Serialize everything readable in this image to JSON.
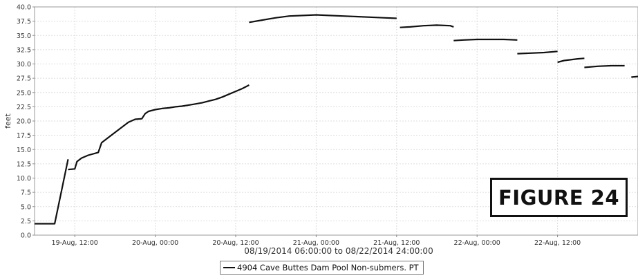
{
  "chart_data": {
    "type": "line",
    "title": "",
    "xlabel": "08/19/2014 06:00:00 to 08/22/2014 24:00:00",
    "ylabel": "feet",
    "x_range": [
      "2014-08-19 06:00",
      "2014-08-22 24:00"
    ],
    "ylim": [
      0,
      40
    ],
    "y_ticks": [
      "0.0",
      "2.5",
      "5.0",
      "7.5",
      "10.0",
      "12.5",
      "15.0",
      "17.5",
      "20.0",
      "22.5",
      "25.0",
      "27.5",
      "30.0",
      "32.5",
      "35.0",
      "37.5",
      "40.0"
    ],
    "x_ticks": [
      {
        "label": "19-Aug, 12:00",
        "x": "2014-08-19 12:00"
      },
      {
        "label": "20-Aug, 00:00",
        "x": "2014-08-20 00:00"
      },
      {
        "label": "20-Aug, 12:00",
        "x": "2014-08-20 12:00"
      },
      {
        "label": "21-Aug, 00:00",
        "x": "2014-08-21 00:00"
      },
      {
        "label": "21-Aug, 12:00",
        "x": "2014-08-21 12:00"
      },
      {
        "label": "22-Aug, 00:00",
        "x": "2014-08-22 00:00"
      },
      {
        "label": "22-Aug, 12:00",
        "x": "2014-08-22 12:00"
      }
    ],
    "grid": true,
    "legend_position": "bottom-center",
    "series": [
      {
        "name": "4904 Cave Buttes Dam Pool Non-submers. PT",
        "color": "#111111",
        "segments": [
          [
            [
              "2014-08-19 06:00",
              2.0
            ],
            [
              "2014-08-19 09:00",
              2.0
            ],
            [
              "2014-08-19 11:00",
              13.3
            ]
          ],
          [
            [
              "2014-08-19 11:00",
              11.5
            ],
            [
              "2014-08-19 12:00",
              11.6
            ],
            [
              "2014-08-19 12:20",
              12.9
            ],
            [
              "2014-08-19 13:00",
              13.5
            ],
            [
              "2014-08-19 14:00",
              14.0
            ],
            [
              "2014-08-19 15:30",
              14.5
            ],
            [
              "2014-08-19 16:00",
              16.2
            ],
            [
              "2014-08-19 17:00",
              17.1
            ],
            [
              "2014-08-19 18:00",
              18.0
            ],
            [
              "2014-08-19 19:00",
              18.9
            ],
            [
              "2014-08-19 20:00",
              19.8
            ],
            [
              "2014-08-19 21:00",
              20.3
            ],
            [
              "2014-08-19 22:00",
              20.4
            ],
            [
              "2014-08-19 22:30",
              21.3
            ],
            [
              "2014-08-19 23:00",
              21.7
            ],
            [
              "2014-08-20 00:00",
              22.0
            ],
            [
              "2014-08-20 01:00",
              22.2
            ],
            [
              "2014-08-20 02:00",
              22.3
            ],
            [
              "2014-08-20 03:00",
              22.5
            ],
            [
              "2014-08-20 04:00",
              22.6
            ],
            [
              "2014-08-20 05:00",
              22.8
            ],
            [
              "2014-08-20 06:00",
              23.0
            ],
            [
              "2014-08-20 07:00",
              23.2
            ],
            [
              "2014-08-20 08:00",
              23.5
            ],
            [
              "2014-08-20 09:00",
              23.8
            ],
            [
              "2014-08-20 10:00",
              24.2
            ],
            [
              "2014-08-20 11:00",
              24.7
            ],
            [
              "2014-08-20 12:00",
              25.2
            ],
            [
              "2014-08-20 13:00",
              25.7
            ],
            [
              "2014-08-20 14:00",
              26.3
            ]
          ],
          [
            [
              "2014-08-20 14:00",
              37.3
            ],
            [
              "2014-08-20 16:00",
              37.7
            ],
            [
              "2014-08-20 18:00",
              38.1
            ],
            [
              "2014-08-20 20:00",
              38.4
            ],
            [
              "2014-08-20 22:00",
              38.5
            ],
            [
              "2014-08-21 00:00",
              38.6
            ],
            [
              "2014-08-21 02:00",
              38.5
            ],
            [
              "2014-08-21 04:00",
              38.4
            ],
            [
              "2014-08-21 06:00",
              38.3
            ],
            [
              "2014-08-21 08:00",
              38.2
            ],
            [
              "2014-08-21 10:00",
              38.1
            ],
            [
              "2014-08-21 12:00",
              38.0
            ]
          ],
          [
            [
              "2014-08-21 12:30",
              36.4
            ],
            [
              "2014-08-21 14:00",
              36.5
            ],
            [
              "2014-08-21 16:00",
              36.7
            ],
            [
              "2014-08-21 18:00",
              36.8
            ],
            [
              "2014-08-21 20:00",
              36.7
            ],
            [
              "2014-08-21 20:30",
              36.5
            ]
          ],
          [
            [
              "2014-08-21 20:30",
              34.1
            ],
            [
              "2014-08-21 22:00",
              34.2
            ],
            [
              "2014-08-22 00:00",
              34.3
            ],
            [
              "2014-08-22 02:00",
              34.3
            ],
            [
              "2014-08-22 04:00",
              34.3
            ],
            [
              "2014-08-22 06:00",
              34.2
            ]
          ],
          [
            [
              "2014-08-22 06:00",
              31.8
            ],
            [
              "2014-08-22 08:00",
              31.9
            ],
            [
              "2014-08-22 10:00",
              32.0
            ],
            [
              "2014-08-22 12:00",
              32.2
            ]
          ],
          [
            [
              "2014-08-22 12:00",
              30.3
            ],
            [
              "2014-08-22 13:00",
              30.6
            ],
            [
              "2014-08-22 15:00",
              30.9
            ],
            [
              "2014-08-22 16:00",
              31.0
            ]
          ],
          [
            [
              "2014-08-22 16:00",
              29.4
            ],
            [
              "2014-08-22 18:00",
              29.6
            ],
            [
              "2014-08-22 20:00",
              29.7
            ],
            [
              "2014-08-22 22:00",
              29.7
            ]
          ],
          [
            [
              "2014-08-22 23:00",
              27.7
            ],
            [
              "2014-08-22 24:00",
              27.8
            ]
          ]
        ]
      }
    ]
  },
  "annotation": {
    "text": "FIGURE 24"
  }
}
